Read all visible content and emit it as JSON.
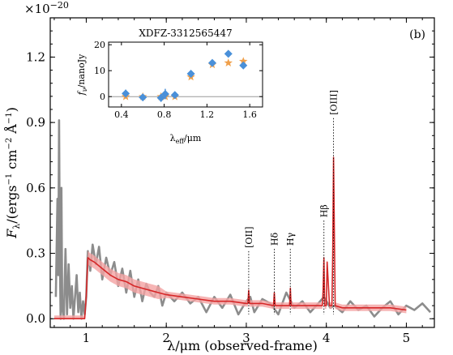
{
  "chart_data": {
    "type": "line",
    "panel_label": "(b)",
    "offset_text": "×10",
    "offset_exponent": "−20",
    "xlabel": "λ/μm (observed-frame)",
    "ylabel_main": "F",
    "ylabel_sub": "λ",
    "ylabel_rest": "/(ergs",
    "ylabel_e1": "−1",
    "ylabel_cm": " cm",
    "ylabel_e2": "−2",
    "ylabel_A": " Å",
    "ylabel_e3": "−1",
    "ylabel_close": ")",
    "xlim": [
      0.55,
      5.35
    ],
    "ylim": [
      -0.04,
      1.38
    ],
    "xticks": [
      1,
      2,
      3,
      4,
      5
    ],
    "xtick_labels": [
      "1",
      "2",
      "3",
      "4",
      "5"
    ],
    "yticks": [
      0.0,
      0.3,
      0.6,
      0.9,
      1.2
    ],
    "ytick_labels": [
      "0.0",
      "0.3",
      "0.6",
      "0.9",
      "1.2"
    ],
    "grid": false,
    "colors": {
      "observed": "#8c8c8c",
      "model": "#d62728",
      "model_band": "#f4a3a3",
      "photometry_observed": "#4a90d9",
      "photometry_model": "#f0a04b"
    },
    "series": [
      {
        "role": "observed spectrum",
        "x": [
          0.62,
          0.64,
          0.65,
          0.66,
          0.67,
          0.68,
          0.69,
          0.7,
          0.72,
          0.74,
          0.76,
          0.78,
          0.8,
          0.82,
          0.84,
          0.86,
          0.88,
          0.9,
          0.92,
          0.94,
          0.96,
          0.98,
          1.0,
          1.02,
          1.05,
          1.08,
          1.12,
          1.16,
          1.2,
          1.25,
          1.3,
          1.35,
          1.4,
          1.45,
          1.5,
          1.55,
          1.6,
          1.65,
          1.7,
          1.75,
          1.8,
          1.85,
          1.9,
          1.95,
          2.0,
          2.1,
          2.2,
          2.3,
          2.4,
          2.5,
          2.6,
          2.7,
          2.8,
          2.9,
          3.0,
          3.05,
          3.1,
          3.2,
          3.3,
          3.4,
          3.5,
          3.6,
          3.7,
          3.8,
          3.9,
          3.97,
          4.05,
          4.1,
          4.2,
          4.3,
          4.4,
          4.5,
          4.6,
          4.7,
          4.8,
          4.9,
          5.0,
          5.1,
          5.2,
          5.3
        ],
        "y": [
          0.1,
          0.55,
          0.2,
          0.91,
          0.3,
          0.0,
          0.6,
          0.05,
          0.0,
          0.32,
          0.02,
          0.25,
          0.05,
          0.15,
          0.0,
          0.1,
          0.2,
          0.03,
          0.12,
          0.0,
          0.08,
          0.02,
          0.1,
          0.31,
          0.22,
          0.34,
          0.25,
          0.33,
          0.18,
          0.28,
          0.2,
          0.26,
          0.15,
          0.23,
          0.12,
          0.22,
          0.1,
          0.18,
          0.08,
          0.16,
          0.12,
          0.1,
          0.15,
          0.06,
          0.12,
          0.08,
          0.12,
          0.07,
          0.1,
          0.03,
          0.1,
          0.05,
          0.11,
          0.02,
          0.08,
          0.1,
          0.03,
          0.09,
          0.07,
          0.02,
          0.12,
          0.05,
          0.08,
          0.03,
          0.07,
          0.1,
          0.05,
          0.06,
          0.03,
          0.08,
          0.04,
          0.06,
          0.01,
          0.05,
          0.08,
          0.02,
          0.06,
          0.04,
          0.07,
          0.03
        ]
      },
      {
        "role": "model spectrum",
        "x": [
          0.6,
          0.98,
          1.0,
          1.02,
          1.05,
          1.1,
          1.2,
          1.3,
          1.4,
          1.5,
          1.6,
          1.7,
          1.8,
          1.9,
          2.0,
          2.2,
          2.4,
          2.6,
          2.8,
          3.0,
          3.02,
          3.03,
          3.04,
          3.2,
          3.34,
          3.35,
          3.36,
          3.54,
          3.55,
          3.56,
          3.8,
          3.95,
          3.96,
          3.97,
          3.98,
          4.0,
          4.01,
          4.04,
          4.07,
          4.08,
          4.09,
          4.11,
          4.2,
          4.4,
          4.6,
          4.8,
          5.0
        ],
        "y": [
          0.0,
          0.0,
          0.1,
          0.28,
          0.27,
          0.26,
          0.23,
          0.2,
          0.18,
          0.17,
          0.15,
          0.14,
          0.13,
          0.12,
          0.11,
          0.1,
          0.09,
          0.08,
          0.08,
          0.07,
          0.07,
          0.13,
          0.07,
          0.07,
          0.06,
          0.12,
          0.06,
          0.06,
          0.14,
          0.06,
          0.06,
          0.06,
          0.13,
          0.28,
          0.06,
          0.06,
          0.26,
          0.06,
          0.06,
          0.3,
          0.74,
          0.06,
          0.05,
          0.05,
          0.05,
          0.05,
          0.04
        ]
      }
    ],
    "line_labels": [
      {
        "text": "[OII]",
        "x": 3.03,
        "y": 0.31
      },
      {
        "text": "Hδ",
        "x": 3.35,
        "y": 0.32
      },
      {
        "text": "Hγ",
        "x": 3.55,
        "y": 0.32
      },
      {
        "text": "Hβ",
        "x": 3.97,
        "y": 0.45
      },
      {
        "text": "[OIII]",
        "x": 4.09,
        "y": 0.92
      }
    ],
    "inset": {
      "title": "XDFZ-3312565447",
      "xlabel": "λ",
      "xlabel_sub": "eff",
      "xlabel_rest": "/μm",
      "ylabel": "f",
      "ylabel_sub": "ν",
      "ylabel_rest": "/nanoJy",
      "xlim": [
        0.28,
        1.72
      ],
      "ylim": [
        -4,
        21
      ],
      "xticks": [
        0.4,
        0.8,
        1.2,
        1.6
      ],
      "xtick_labels": [
        "0.4",
        "0.8",
        "1.2",
        "1.6"
      ],
      "yticks": [
        0,
        10,
        20
      ],
      "ytick_labels": [
        "0",
        "10",
        "20"
      ],
      "zero_line": true,
      "observed_photometry": {
        "x": [
          0.44,
          0.6,
          0.77,
          0.81,
          0.9,
          1.05,
          1.25,
          1.4,
          1.54
        ],
        "y": [
          1.2,
          -0.3,
          -0.5,
          1.0,
          0.6,
          8.8,
          13.0,
          16.5,
          12.0
        ],
        "yerr": [
          1.5,
          1.0,
          1.5,
          2.0,
          1.0,
          1.0,
          1.0,
          1.0,
          1.0
        ]
      },
      "model_photometry": {
        "x": [
          0.44,
          0.6,
          0.77,
          0.81,
          0.9,
          1.05,
          1.25,
          1.4,
          1.54
        ],
        "y": [
          0.0,
          0.0,
          0.0,
          0.0,
          0.0,
          7.6,
          12.3,
          13.0,
          13.6
        ]
      }
    }
  }
}
